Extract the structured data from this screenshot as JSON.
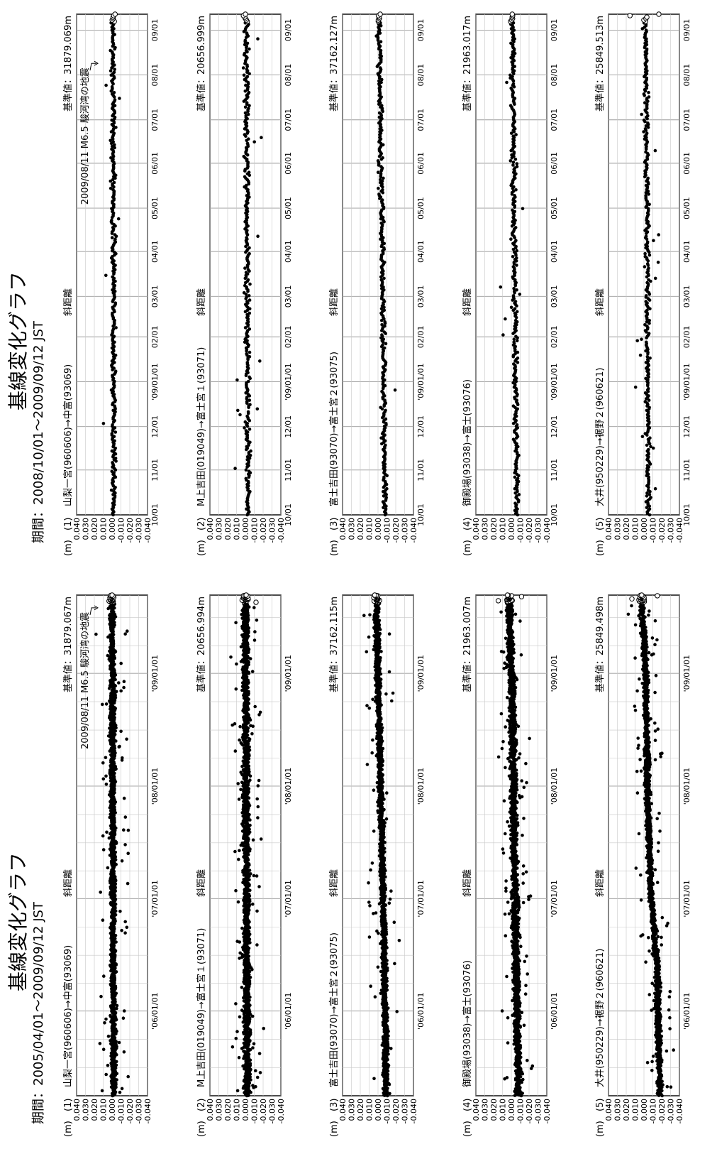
{
  "chart_data": [
    {
      "type": "scatter",
      "title": "基線変化グラフ",
      "period": "期間：2005/04/01～2009/09/12 JST",
      "x_domain": [
        "2005-04-01",
        "2009-09-12"
      ],
      "x_ticks": [
        {
          "label": "'06/01/01",
          "date": "2006-01-01"
        },
        {
          "label": "'07/01/01",
          "date": "2007-01-01"
        },
        {
          "label": "'08/01/01",
          "date": "2008-01-01"
        },
        {
          "label": "'09/01/01",
          "date": "2009-01-01"
        }
      ],
      "minor_step_months": 3,
      "subplots": [
        {
          "index": "(1)",
          "unit": "(m)",
          "name": "山梨一宮(960606)→中富(93069)",
          "type_label": "斜距離",
          "ref": "基準値：31879.067m",
          "yticks": [
            "0.040",
            "0.030",
            "0.020",
            "0.010",
            "0.000",
            "-0.010",
            "-0.020",
            "-0.030",
            "-0.040"
          ],
          "trend": [
            [
              0,
              -0.002
            ],
            [
              0.5,
              -0.001
            ],
            [
              1,
              0.0
            ]
          ],
          "noise": 0.003,
          "outlier_rate": 0.03,
          "annotation": {
            "lines": [
              "2009/08/11 M6.5 駿河湾の地震"
            ],
            "date": "2009-08-11"
          }
        },
        {
          "index": "(2)",
          "unit": "(m)",
          "name": "M上吉田(019049)→富士宮１(93071)",
          "type_label": "斜距離",
          "ref": "基準値：20656.994m",
          "yticks": [
            "0.040",
            "0.030",
            "0.020",
            "0.010",
            "0.000",
            "-0.010",
            "-0.020",
            "-0.030",
            "-0.040"
          ],
          "trend": [
            [
              0,
              -0.002
            ],
            [
              0.5,
              -0.001
            ],
            [
              1,
              0.0
            ]
          ],
          "noise": 0.004,
          "outlier_rate": 0.04
        },
        {
          "index": "(3)",
          "unit": "(m)",
          "name": "富士吉田(93070)→富士宮２(93075)",
          "type_label": "斜距離",
          "ref": "基準値：37162.115m",
          "yticks": [
            "0.040",
            "0.030",
            "0.020",
            "0.010",
            "0.000",
            "-0.010",
            "-0.020",
            "-0.030",
            "-0.040"
          ],
          "trend": [
            [
              0,
              -0.009
            ],
            [
              0.3,
              -0.007
            ],
            [
              0.6,
              -0.003
            ],
            [
              1,
              0.002
            ]
          ],
          "noise": 0.003,
          "outlier_rate": 0.02
        },
        {
          "index": "(4)",
          "unit": "(m)",
          "name": "御殿場(93038)→富士(93076)",
          "type_label": "斜距離",
          "ref": "基準値：21963.007m",
          "yticks": [
            "0.040",
            "0.030",
            "0.020",
            "0.010",
            "0.000",
            "-0.010",
            "-0.020",
            "-0.030",
            "-0.040"
          ],
          "trend": [
            [
              0,
              -0.008
            ],
            [
              0.4,
              -0.004
            ],
            [
              0.8,
              -0.001
            ],
            [
              1,
              0.003
            ]
          ],
          "noise": 0.004,
          "outlier_rate": 0.04
        },
        {
          "index": "(5)",
          "unit": "(m)",
          "name": "大井(950229)→裾野２(960621)",
          "type_label": "斜距離",
          "ref": "基準値：25849.498m",
          "yticks": [
            "0.040",
            "0.030",
            "0.020",
            "0.010",
            "0.000",
            "-0.010",
            "-0.020",
            "-0.030",
            "-0.040"
          ],
          "trend": [
            [
              0,
              -0.018
            ],
            [
              0.25,
              -0.015
            ],
            [
              0.4,
              -0.008
            ],
            [
              0.6,
              -0.004
            ],
            [
              0.85,
              -0.002
            ],
            [
              1,
              0.003
            ]
          ],
          "noise": 0.003,
          "outlier_rate": 0.04
        }
      ]
    },
    {
      "type": "scatter",
      "title": "基線変化グラフ",
      "period": "期間：2008/10/01～2009/09/12 JST",
      "x_domain": [
        "2008-10-01",
        "2009-09-12"
      ],
      "x_ticks": [
        {
          "label": "10/01",
          "date": "2008-10-01"
        },
        {
          "label": "11/01",
          "date": "2008-11-01"
        },
        {
          "label": "12/01",
          "date": "2008-12-01"
        },
        {
          "label": "'09/01/01",
          "date": "2009-01-01"
        },
        {
          "label": "02/01",
          "date": "2009-02-01"
        },
        {
          "label": "03/01",
          "date": "2009-03-01"
        },
        {
          "label": "04/01",
          "date": "2009-04-01"
        },
        {
          "label": "05/01",
          "date": "2009-05-01"
        },
        {
          "label": "06/01",
          "date": "2009-06-01"
        },
        {
          "label": "07/01",
          "date": "2009-07-01"
        },
        {
          "label": "08/01",
          "date": "2009-08-01"
        },
        {
          "label": "09/01",
          "date": "2009-09-01"
        }
      ],
      "minor_step_months": 0,
      "subplots": [
        {
          "index": "(1)",
          "unit": "(m)",
          "name": "山梨一宮(960606)→中富(93069)",
          "type_label": "斜距離",
          "ref": "基準値：31879.069m",
          "yticks": [
            "0.040",
            "0.030",
            "0.020",
            "0.010",
            "0.000",
            "-0.010",
            "-0.020",
            "-0.030",
            "-0.040"
          ],
          "trend": [
            [
              0,
              -0.002
            ],
            [
              1,
              -0.001
            ]
          ],
          "noise": 0.0025,
          "outlier_rate": 0.02,
          "annotation": {
            "lines": [
              "2009/08/11 M6.5 駿河湾の地震"
            ],
            "date": "2009-08-11"
          }
        },
        {
          "index": "(2)",
          "unit": "(m)",
          "name": "M上吉田(019049)→富士宮１(93071)",
          "type_label": "斜距離",
          "ref": "基準値：20656.999m",
          "yticks": [
            "0.040",
            "0.030",
            "0.020",
            "0.010",
            "0.000",
            "-0.010",
            "-0.020",
            "-0.030",
            "-0.040"
          ],
          "trend": [
            [
              0,
              -0.003
            ],
            [
              1,
              -0.001
            ]
          ],
          "noise": 0.003,
          "outlier_rate": 0.03
        },
        {
          "index": "(3)",
          "unit": "(m)",
          "name": "富士吉田(93070)→富士宮２(93075)",
          "type_label": "斜距離",
          "ref": "基準値：37162.127m",
          "yticks": [
            "0.040",
            "0.030",
            "0.020",
            "0.010",
            "0.000",
            "-0.010",
            "-0.020",
            "-0.030",
            "-0.040"
          ],
          "trend": [
            [
              0,
              -0.008
            ],
            [
              0.5,
              -0.005
            ],
            [
              1,
              -0.001
            ]
          ],
          "noise": 0.0025,
          "outlier_rate": 0.01
        },
        {
          "index": "(4)",
          "unit": "(m)",
          "name": "御殿場(93038)→富士(93076)",
          "type_label": "斜距離",
          "ref": "基準値：21963.017m",
          "yticks": [
            "0.040",
            "0.030",
            "0.020",
            "0.010",
            "0.000",
            "-0.010",
            "-0.020",
            "-0.030",
            "-0.040"
          ],
          "trend": [
            [
              0,
              -0.006
            ],
            [
              1,
              -0.001
            ]
          ],
          "noise": 0.003,
          "outlier_rate": 0.03
        },
        {
          "index": "(5)",
          "unit": "(m)",
          "name": "大井(950229)→裾野２(960621)",
          "type_label": "斜距離",
          "ref": "基準値：25849.513m",
          "yticks": [
            "0.040",
            "0.030",
            "0.020",
            "0.010",
            "0.000",
            "-0.010",
            "-0.020",
            "-0.030",
            "-0.040"
          ],
          "trend": [
            [
              0,
              -0.005
            ],
            [
              1,
              -0.002
            ]
          ],
          "noise": 0.0025,
          "outlier_rate": 0.03
        }
      ]
    }
  ]
}
